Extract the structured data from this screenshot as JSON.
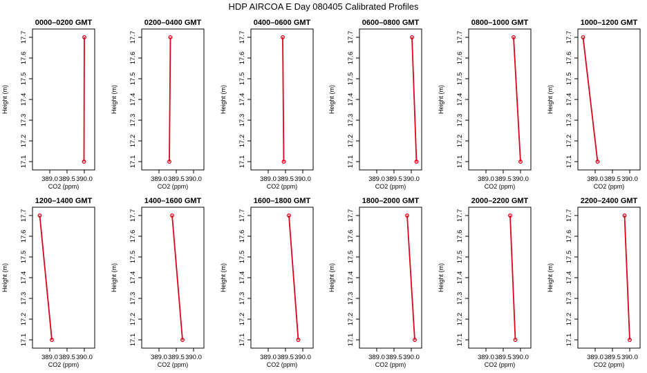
{
  "figure": {
    "title": "HDP  AIRCOA E  Day 080405  Calibrated Profiles"
  },
  "chart_data": [
    {
      "type": "line",
      "title": "0000–0200 GMT",
      "xlabel": "CO2 (ppm)",
      "ylabel": "Height (m)",
      "xlim": [
        388.5,
        390.3
      ],
      "ylim": [
        17.06,
        17.74
      ],
      "xticks": [
        "389.0",
        "389.5",
        "390.0"
      ],
      "yticks": [
        "17.1",
        "17.2",
        "17.3",
        "17.4",
        "17.5",
        "17.6",
        "17.7"
      ],
      "series": [
        {
          "points": [
            {
              "x": 390.0,
              "y": 17.7
            },
            {
              "x": 389.99,
              "y": 17.1
            }
          ]
        }
      ]
    },
    {
      "type": "line",
      "title": "0200–0400 GMT",
      "xlabel": "CO2 (ppm)",
      "ylabel": "Height (m)",
      "xlim": [
        388.5,
        390.3
      ],
      "ylim": [
        17.06,
        17.74
      ],
      "xticks": [
        "389.0",
        "389.5",
        "390.0"
      ],
      "yticks": [
        "17.1",
        "17.2",
        "17.3",
        "17.4",
        "17.5",
        "17.6",
        "17.7"
      ],
      "series": [
        {
          "points": [
            {
              "x": 389.33,
              "y": 17.7
            },
            {
              "x": 389.3,
              "y": 17.1
            }
          ]
        }
      ]
    },
    {
      "type": "line",
      "title": "0400–0600 GMT",
      "xlabel": "CO2 (ppm)",
      "ylabel": "Height (m)",
      "xlim": [
        388.5,
        390.3
      ],
      "ylim": [
        17.06,
        17.74
      ],
      "xticks": [
        "389.0",
        "389.5",
        "390.0"
      ],
      "yticks": [
        "17.1",
        "17.2",
        "17.3",
        "17.4",
        "17.5",
        "17.6",
        "17.7"
      ],
      "series": [
        {
          "points": [
            {
              "x": 389.42,
              "y": 17.7
            },
            {
              "x": 389.45,
              "y": 17.1
            }
          ]
        }
      ]
    },
    {
      "type": "line",
      "title": "0600–0800 GMT",
      "xlabel": "CO2 (ppm)",
      "ylabel": "Height (m)",
      "xlim": [
        388.5,
        390.3
      ],
      "ylim": [
        17.06,
        17.74
      ],
      "xticks": [
        "389.0",
        "389.5",
        "390.0"
      ],
      "yticks": [
        "17.1",
        "17.2",
        "17.3",
        "17.4",
        "17.5",
        "17.6",
        "17.7"
      ],
      "series": [
        {
          "points": [
            {
              "x": 390.02,
              "y": 17.7
            },
            {
              "x": 390.15,
              "y": 17.1
            }
          ]
        }
      ]
    },
    {
      "type": "line",
      "title": "0800–1000 GMT",
      "xlabel": "CO2 (ppm)",
      "ylabel": "Height (m)",
      "xlim": [
        388.5,
        390.3
      ],
      "ylim": [
        17.06,
        17.74
      ],
      "xticks": [
        "389.0",
        "389.5",
        "390.0"
      ],
      "yticks": [
        "17.1",
        "17.2",
        "17.3",
        "17.4",
        "17.5",
        "17.6",
        "17.7"
      ],
      "series": [
        {
          "points": [
            {
              "x": 389.8,
              "y": 17.7
            },
            {
              "x": 390.0,
              "y": 17.1
            }
          ]
        }
      ]
    },
    {
      "type": "line",
      "title": "1000–1200 GMT",
      "xlabel": "CO2 (ppm)",
      "ylabel": "Height (m)",
      "xlim": [
        388.5,
        390.3
      ],
      "ylim": [
        17.06,
        17.74
      ],
      "xticks": [
        "389.0",
        "389.5",
        "390.0"
      ],
      "yticks": [
        "17.1",
        "17.2",
        "17.3",
        "17.4",
        "17.5",
        "17.6",
        "17.7"
      ],
      "series": [
        {
          "points": [
            {
              "x": 388.65,
              "y": 17.7
            },
            {
              "x": 389.07,
              "y": 17.1
            }
          ]
        }
      ]
    },
    {
      "type": "line",
      "title": "1200–1400 GMT",
      "xlabel": "CO2 (ppm)",
      "ylabel": "Height (m)",
      "xlim": [
        388.5,
        390.3
      ],
      "ylim": [
        17.06,
        17.74
      ],
      "xticks": [
        "389.0",
        "389.5",
        "390.0"
      ],
      "yticks": [
        "17.1",
        "17.2",
        "17.3",
        "17.4",
        "17.5",
        "17.6",
        "17.7"
      ],
      "series": [
        {
          "points": [
            {
              "x": 388.71,
              "y": 17.7
            },
            {
              "x": 389.06,
              "y": 17.1
            }
          ]
        }
      ]
    },
    {
      "type": "line",
      "title": "1400–1600 GMT",
      "xlabel": "CO2 (ppm)",
      "ylabel": "Height (m)",
      "xlim": [
        388.5,
        390.3
      ],
      "ylim": [
        17.06,
        17.74
      ],
      "xticks": [
        "389.0",
        "389.5",
        "390.0"
      ],
      "yticks": [
        "17.1",
        "17.2",
        "17.3",
        "17.4",
        "17.5",
        "17.6",
        "17.7"
      ],
      "series": [
        {
          "points": [
            {
              "x": 389.38,
              "y": 17.7
            },
            {
              "x": 389.68,
              "y": 17.1
            }
          ]
        }
      ]
    },
    {
      "type": "line",
      "title": "1600–1800 GMT",
      "xlabel": "CO2 (ppm)",
      "ylabel": "Height (m)",
      "xlim": [
        388.5,
        390.3
      ],
      "ylim": [
        17.06,
        17.74
      ],
      "xticks": [
        "389.0",
        "389.5",
        "390.0"
      ],
      "yticks": [
        "17.1",
        "17.2",
        "17.3",
        "17.4",
        "17.5",
        "17.6",
        "17.7"
      ],
      "series": [
        {
          "points": [
            {
              "x": 389.6,
              "y": 17.7
            },
            {
              "x": 389.87,
              "y": 17.1
            }
          ]
        }
      ]
    },
    {
      "type": "line",
      "title": "1800–2000 GMT",
      "xlabel": "CO2 (ppm)",
      "ylabel": "Height (m)",
      "xlim": [
        388.5,
        390.3
      ],
      "ylim": [
        17.06,
        17.74
      ],
      "xticks": [
        "389.0",
        "389.5",
        "390.0"
      ],
      "yticks": [
        "17.1",
        "17.2",
        "17.3",
        "17.4",
        "17.5",
        "17.6",
        "17.7"
      ],
      "series": [
        {
          "points": [
            {
              "x": 389.88,
              "y": 17.7
            },
            {
              "x": 390.1,
              "y": 17.1
            }
          ]
        }
      ]
    },
    {
      "type": "line",
      "title": "2000–2200 GMT",
      "xlabel": "CO2 (ppm)",
      "ylabel": "Height (m)",
      "xlim": [
        388.5,
        390.3
      ],
      "ylim": [
        17.06,
        17.74
      ],
      "xticks": [
        "389.0",
        "389.5",
        "390.0"
      ],
      "yticks": [
        "17.1",
        "17.2",
        "17.3",
        "17.4",
        "17.5",
        "17.6",
        "17.7"
      ],
      "series": [
        {
          "points": [
            {
              "x": 389.7,
              "y": 17.7
            },
            {
              "x": 389.85,
              "y": 17.1
            }
          ]
        }
      ]
    },
    {
      "type": "line",
      "title": "2200–2400 GMT",
      "xlabel": "CO2 (ppm)",
      "ylabel": "Height (m)",
      "xlim": [
        388.5,
        390.3
      ],
      "ylim": [
        17.06,
        17.74
      ],
      "xticks": [
        "389.0",
        "389.5",
        "390.0"
      ],
      "yticks": [
        "17.1",
        "17.2",
        "17.3",
        "17.4",
        "17.5",
        "17.6",
        "17.7"
      ],
      "series": [
        {
          "points": [
            {
              "x": 389.85,
              "y": 17.7
            },
            {
              "x": 390.0,
              "y": 17.1
            }
          ]
        }
      ]
    }
  ],
  "style": {
    "series_color": "#e0001a",
    "axis_color": "#000000"
  }
}
